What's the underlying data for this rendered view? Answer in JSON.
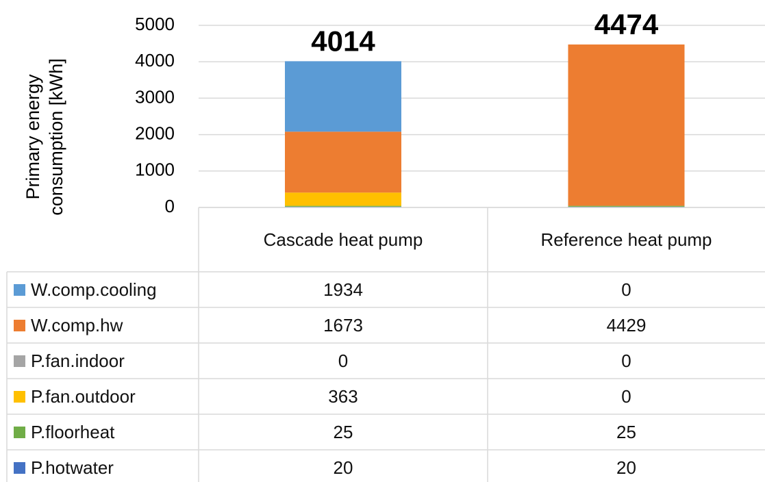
{
  "chart_data": {
    "type": "stacked_bar",
    "ylabel": [
      "Primary energy",
      "consumption  [kWh]"
    ],
    "categories": [
      "Cascade heat pump",
      "Reference heat pump"
    ],
    "series": [
      {
        "name": "W.comp.cooling",
        "color": "#5b9bd5",
        "values": [
          1934,
          0
        ]
      },
      {
        "name": "W.comp.hw",
        "color": "#ed7d31",
        "values": [
          1673,
          4429
        ]
      },
      {
        "name": "P.fan.indoor",
        "color": "#a5a5a5",
        "values": [
          0,
          0
        ]
      },
      {
        "name": "P.fan.outdoor",
        "color": "#ffc000",
        "values": [
          363,
          0
        ]
      },
      {
        "name": "P.floorheat",
        "color": "#70ad47",
        "values": [
          25,
          25
        ]
      },
      {
        "name": "P.hotwater",
        "color": "#4472c4",
        "values": [
          20,
          20
        ]
      }
    ],
    "total_labels": [
      4014,
      4474
    ],
    "ylim": [
      0,
      5000
    ],
    "yticks": [
      0,
      1000,
      2000,
      3000,
      4000,
      5000
    ],
    "grid": true
  }
}
